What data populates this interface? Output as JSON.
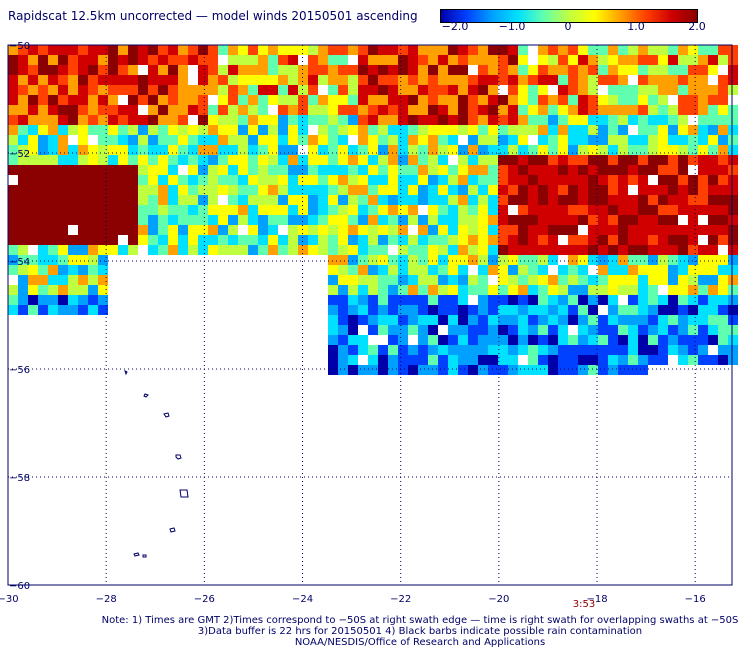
{
  "title": "Rapidscat 12.5km uncorrected — model winds 20150501 ascending",
  "colorbar": {
    "ticks": [
      "−2.0",
      "−1.0",
      "0",
      "1.0",
      "2.0"
    ],
    "colors": [
      "#0000aa",
      "#0040ff",
      "#00a0ff",
      "#00e0ff",
      "#60ffb0",
      "#c0ff40",
      "#ffff00",
      "#ffa000",
      "#ff4000",
      "#d00000",
      "#8b0000"
    ]
  },
  "axes": {
    "x_ticks": [
      "−30",
      "−28",
      "−26",
      "−24",
      "−22",
      "−20",
      "−18",
      "−16"
    ],
    "y_ticks": [
      "−50",
      "−52",
      "−54",
      "−56",
      "−58",
      "−60"
    ]
  },
  "time_label": "3:53",
  "notes": [
    "Note: 1) Times are GMT 2)Times correspond to −50S at right swath edge — time is right swath for overlapping swaths at −50S",
    "3)Data buffer is 22 hrs for 20150501 4) Black barbs indicate possible rain contamination",
    "NOAA/NESDIS/Office of Research and Applications"
  ]
}
